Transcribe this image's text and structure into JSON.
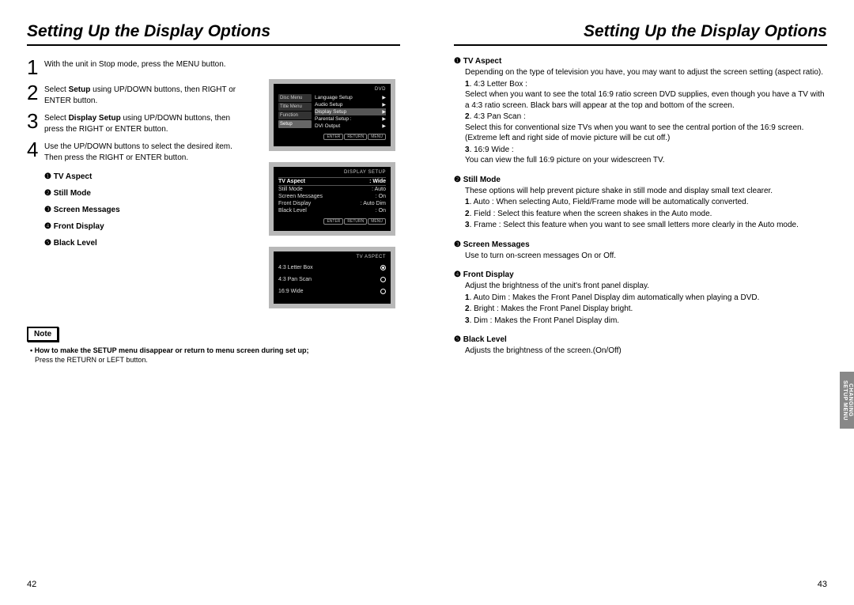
{
  "title": "Setting Up the Display Options",
  "left": {
    "steps": [
      {
        "n": "1",
        "txt": "With the unit in Stop mode, press the MENU button."
      },
      {
        "n": "2",
        "txt": "Select <b>Setup</b> using UP/DOWN buttons, then RIGHT or ENTER button."
      },
      {
        "n": "3",
        "txt": "Select <b>Display Setup</b> using UP/DOWN buttons, then press the RIGHT or ENTER button."
      },
      {
        "n": "4",
        "txt": "Use the UP/DOWN buttons to select the desired item. Then press the RIGHT or ENTER button."
      }
    ],
    "options": [
      {
        "m": "❶",
        "l": "TV Aspect"
      },
      {
        "m": "❷",
        "l": "Still Mode"
      },
      {
        "m": "❸",
        "l": "Screen Messages"
      },
      {
        "m": "❹",
        "l": "Front Display"
      },
      {
        "m": "❺",
        "l": "Black Level"
      }
    ],
    "note_label": "Note",
    "note_title": "• How to make the SETUP menu disappear or return to menu screen during set up;",
    "note_body": "Press the RETURN or LEFT button.",
    "pagenum": "42"
  },
  "screens": {
    "s1": {
      "hdr": "DVD",
      "side": [
        "Disc Menu",
        "Title Menu",
        "Function",
        "Setup"
      ],
      "menu": [
        [
          "Language Setup",
          "▶"
        ],
        [
          "Audio Setup",
          "▶"
        ],
        [
          "Display Setup",
          "▶"
        ],
        [
          "Parental Setup :",
          "▶"
        ],
        [
          "DVI Output",
          "▶"
        ]
      ],
      "btns": [
        "ENTER",
        "RETURN",
        "MENU"
      ]
    },
    "s2": {
      "hdr": "DISPLAY SETUP",
      "rows": [
        [
          "TV Aspect",
          ": Wide"
        ],
        [
          "Still Mode",
          ": Auto"
        ],
        [
          "Screen Messages",
          ": On"
        ],
        [
          "Front Display",
          ": Auto Dim"
        ],
        [
          "Black Level",
          ": On"
        ]
      ],
      "btns": [
        "ENTER",
        "RETURN",
        "MENU"
      ]
    },
    "s3": {
      "hdr": "TV ASPECT",
      "rows": [
        [
          "4:3 Letter Box",
          true
        ],
        [
          "4:3 Pan Scan",
          false
        ],
        [
          "16:9 Wide",
          false
        ]
      ]
    }
  },
  "right": {
    "sections": [
      {
        "m": "❶",
        "h": "TV Aspect",
        "body": "Depending on the type of television you have, you may want to adjust the screen setting (aspect ratio).",
        "list": [
          "<b>1</b>. 4:3 Letter Box :<br>Select when you want to see the total 16:9 ratio screen DVD supplies, even though you have a TV with a 4:3 ratio screen. Black bars will appear at the top and bottom of the screen.",
          "<b>2</b>. 4:3 Pan Scan :<br>Select this for conventional size TVs when you want to see the central portion of the 16:9 screen. (Extreme left and right side of movie picture will be cut off.)",
          "<b>3</b>. 16:9 Wide :<br>You can view the full 16:9 picture on your widescreen TV."
        ]
      },
      {
        "m": "❷",
        "h": "Still Mode",
        "body": "These options will help prevent picture shake in still mode and display small text clearer.",
        "list": [
          "<b>1</b>. Auto : When selecting Auto, Field/Frame mode will be automatically converted.",
          "<b>2</b>. Field : Select this feature when the screen shakes in the Auto mode.",
          "<b>3</b>. Frame : Select this feature when you want to see small letters more clearly in the Auto mode."
        ]
      },
      {
        "m": "❸",
        "h": "Screen Messages",
        "body": "Use to turn on-screen messages On or Off."
      },
      {
        "m": "❹",
        "h": "Front Display",
        "body": "Adjust the brightness of the unit's front panel display.",
        "list": [
          "<b>1</b>. Auto Dim : Makes the Front Panel Display dim automatically when playing a DVD.",
          "<b>2</b>. Bright : Makes the Front Panel Display bright.",
          "<b>3</b>. Dim : Makes the Front Panel Display dim."
        ]
      },
      {
        "m": "❺",
        "h": "Black Level",
        "body": "Adjusts the brightness of the screen.(On/Off)"
      }
    ],
    "sidetab": "CHANGING SETUP MENU",
    "pagenum": "43"
  }
}
